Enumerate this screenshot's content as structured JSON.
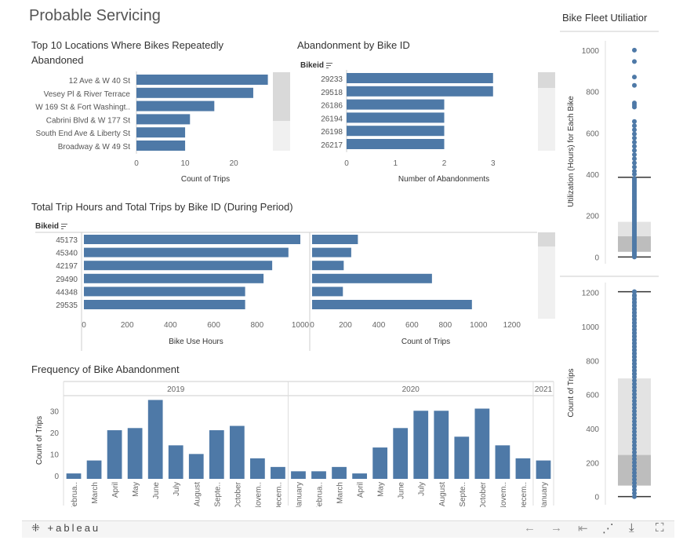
{
  "dashboard_title": "Probable Servicing",
  "footer": {
    "logo": "+ableau"
  },
  "locations": {
    "title": "Top 10 Locations Where Bikes Repeatedly Abandoned",
    "xlabel": "Count of Trips"
  },
  "abandon_by_bike": {
    "title": "Abandonment by Bike ID",
    "header": "Bikeid",
    "xlabel": "Number of Abandonments"
  },
  "trip_hours": {
    "title": "Total Trip Hours and Total Trips by Bike ID (During Period)",
    "header": "Bikeid",
    "xlabel_left": "Bike Use Hours",
    "xlabel_right": "Count of Trips"
  },
  "frequency": {
    "title": "Frequency of Bike Abandonment",
    "ylabel": "Count of Trips",
    "years": [
      "2019",
      "2020",
      "2021"
    ]
  },
  "fleet": {
    "title": "Bike Fleet Utiliatior",
    "ylabel_top": "Utilization (Hours) for Each Bike",
    "ylabel_bottom": "Count of Trips"
  },
  "colors": {
    "bar": "#4e79a7",
    "dot": "#4e79a7"
  },
  "chart_data": [
    {
      "id": "locations",
      "type": "bar",
      "orientation": "horizontal",
      "categories": [
        "12 Ave & W 40 St",
        "Vesey Pl & River Terrace",
        "W 169 St & Fort Washingt..",
        "Cabrini Blvd & W 177 St",
        "South End Ave & Liberty St",
        "Broadway & W 49 St"
      ],
      "values": [
        27,
        24,
        16,
        11,
        10,
        10
      ],
      "xlim": [
        0,
        29
      ],
      "xticks": [
        0,
        10,
        20
      ],
      "xlabel": "Count of Trips"
    },
    {
      "id": "abandon_by_bike",
      "type": "bar",
      "orientation": "horizontal",
      "categories": [
        "29233",
        "29518",
        "26186",
        "26194",
        "26198",
        "26217"
      ],
      "values": [
        3,
        3,
        2,
        2,
        2,
        2
      ],
      "xlim": [
        0,
        3.1
      ],
      "xticks": [
        0,
        1,
        2,
        3
      ],
      "xlabel": "Number of Abandonments"
    },
    {
      "id": "trip_hours",
      "type": "bar",
      "orientation": "horizontal",
      "categories": [
        "45173",
        "45340",
        "42197",
        "29490",
        "44348",
        "29535"
      ],
      "series": [
        {
          "name": "Bike Use Hours",
          "values": [
            1000,
            945,
            870,
            830,
            745,
            745
          ],
          "xlim": [
            0,
            1000
          ],
          "xticks": [
            0,
            200,
            400,
            600,
            800,
            1000
          ]
        },
        {
          "name": "Count of Trips",
          "values": [
            275,
            235,
            190,
            720,
            185,
            960
          ],
          "xlim": [
            0,
            1300
          ],
          "xticks": [
            0,
            200,
            400,
            600,
            800,
            1000,
            1200
          ]
        }
      ]
    },
    {
      "id": "frequency",
      "type": "bar",
      "categories": [
        "Februa..",
        "March",
        "April",
        "May",
        "June",
        "July",
        "August",
        "Septe..",
        "October",
        "Novem..",
        "Decem..",
        "January",
        "Februa..",
        "March",
        "April",
        "May",
        "June",
        "July",
        "August",
        "Septe..",
        "October",
        "Novem..",
        "Decem..",
        "January"
      ],
      "years": [
        "2019",
        "2019",
        "2019",
        "2019",
        "2019",
        "2019",
        "2019",
        "2019",
        "2019",
        "2019",
        "2019",
        "2020",
        "2020",
        "2020",
        "2020",
        "2020",
        "2020",
        "2020",
        "2020",
        "2020",
        "2020",
        "2020",
        "2020",
        "2021"
      ],
      "values": [
        1,
        7,
        21,
        22,
        35,
        14,
        10,
        21,
        23,
        8,
        4,
        2,
        2,
        4,
        1,
        13,
        22,
        30,
        30,
        18,
        31,
        14,
        8,
        7
      ],
      "ylim": [
        -1.5,
        37
      ],
      "yticks": [
        0,
        10,
        20,
        30
      ],
      "ylabel": "Count of Trips"
    },
    {
      "id": "fleet_hours",
      "type": "scatter",
      "subtype": "box-plot",
      "ylim": [
        -10,
        1030
      ],
      "yticks": [
        0,
        200,
        400,
        600,
        800,
        1000
      ],
      "box": {
        "q1": 25,
        "median": 100,
        "q3": 170,
        "whisker_low": 0,
        "whisker_high": 385
      },
      "outliers": [
        1000,
        945,
        870,
        830,
        745,
        735,
        725,
        655,
        635,
        615,
        595,
        575,
        555,
        535,
        515,
        495,
        475,
        455,
        435,
        415,
        400
      ],
      "ylabel": "Utilization (Hours) for Each Bike"
    },
    {
      "id": "fleet_trips",
      "type": "scatter",
      "subtype": "box-plot",
      "ylim": [
        -20,
        1240
      ],
      "yticks": [
        0,
        200,
        400,
        600,
        800,
        1000,
        1200
      ],
      "box": {
        "q1": 65,
        "median": 245,
        "q3": 695,
        "whisker_low": 0,
        "whisker_high": 1205
      },
      "outliers": [
        1205,
        1180,
        1160,
        1140,
        1120,
        1100,
        1080,
        1060,
        1040,
        1020,
        1000,
        980,
        960,
        940,
        920,
        900,
        880,
        860,
        840,
        820,
        800,
        780,
        760,
        740,
        720
      ],
      "ylabel": "Count of Trips"
    }
  ]
}
